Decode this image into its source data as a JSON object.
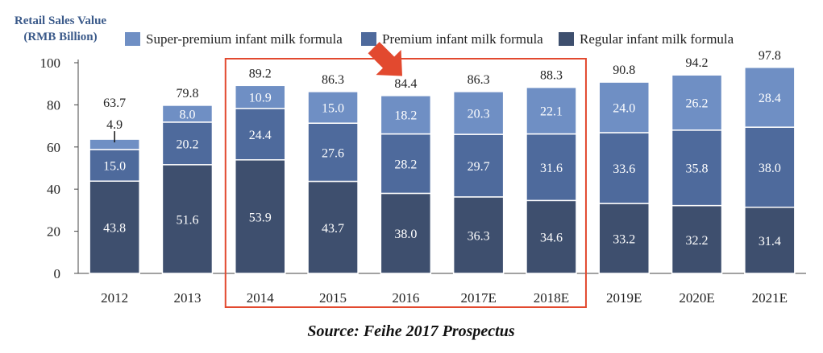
{
  "chart_data": {
    "type": "bar",
    "stacked": true,
    "ylabel_line1": "Retail Sales Value",
    "ylabel_line2": "(RMB Billion)",
    "ylim": [
      0,
      100
    ],
    "yticks": [
      "0",
      "20",
      "40",
      "60",
      "80",
      "100"
    ],
    "categories": [
      "2012",
      "2013",
      "2014",
      "2015",
      "2016",
      "2017E",
      "2018E",
      "2019E",
      "2020E",
      "2021E"
    ],
    "series": [
      {
        "name": "Regular infant milk formula",
        "color": "#3e4f6e",
        "values": [
          43.8,
          51.6,
          53.9,
          43.7,
          38.0,
          36.3,
          34.6,
          33.2,
          32.2,
          31.4
        ],
        "labels": [
          "43.8",
          "51.6",
          "53.9",
          "43.7",
          "38.0",
          "36.3",
          "34.6",
          "33.2",
          "32.2",
          "31.4"
        ]
      },
      {
        "name": "Premium infant milk formula",
        "color": "#4e6a9c",
        "values": [
          15.0,
          20.2,
          24.4,
          27.6,
          28.2,
          29.7,
          31.6,
          33.6,
          35.8,
          38.0
        ],
        "labels": [
          "15.0",
          "20.2",
          "24.4",
          "27.6",
          "28.2",
          "29.7",
          "31.6",
          "33.6",
          "35.8",
          "38.0"
        ]
      },
      {
        "name": "Super-premium infant milk formula",
        "color": "#6f8fc4",
        "values": [
          4.9,
          8.0,
          10.9,
          15.0,
          18.2,
          20.3,
          22.1,
          24.0,
          26.2,
          28.4
        ],
        "labels": [
          "4.9",
          "8.0",
          "10.9",
          "15.0",
          "18.2",
          "20.3",
          "22.1",
          "24.0",
          "26.2",
          "28.4"
        ]
      }
    ],
    "totals": [
      63.7,
      79.8,
      89.2,
      86.3,
      84.4,
      86.3,
      88.3,
      90.8,
      94.2,
      97.8
    ],
    "total_labels": [
      "63.7",
      "79.8",
      "89.2",
      "86.3",
      "84.4",
      "86.3",
      "88.3",
      "90.8",
      "94.2",
      "97.8"
    ],
    "legend": [
      "Super-premium infant milk formula",
      "Premium infant milk formula",
      "Regular infant milk formula"
    ],
    "highlight_range": [
      "2014",
      "2018E"
    ],
    "highlight_color": "#e2492f",
    "arrow_target": "2016",
    "annotation": "Source: Feihe 2017 Prospectus"
  }
}
